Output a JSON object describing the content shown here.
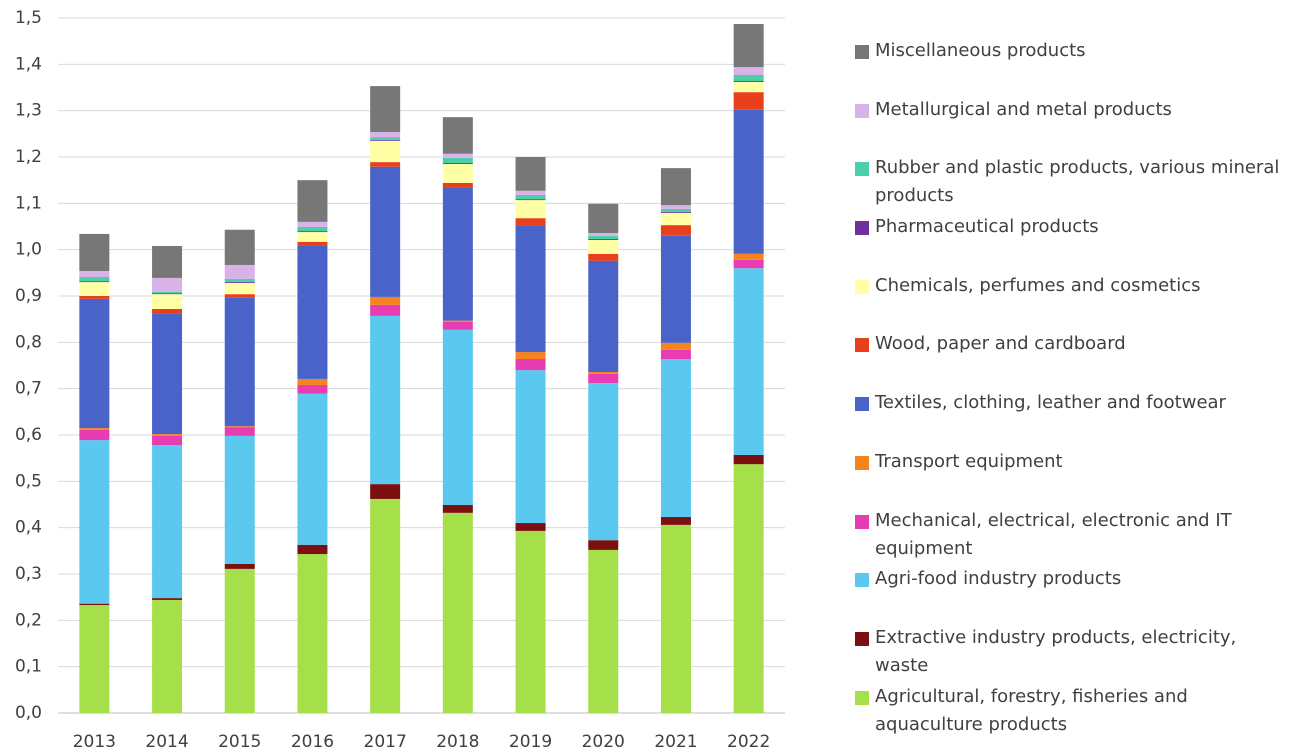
{
  "chart_data": {
    "type": "stacked_bar",
    "categories": [
      "2013",
      "2014",
      "2015",
      "2016",
      "2017",
      "2018",
      "2019",
      "2020",
      "2021",
      "2022"
    ],
    "ylim": [
      0,
      1.5
    ],
    "yticks": [
      {
        "value": 0,
        "label": "0,0"
      },
      {
        "value": 0.1,
        "label": "0,1"
      },
      {
        "value": 0.2,
        "label": "0,2"
      },
      {
        "value": 0.3,
        "label": "0,3"
      },
      {
        "value": 0.4,
        "label": "0,4"
      },
      {
        "value": 0.5,
        "label": "0,5"
      },
      {
        "value": 0.6,
        "label": "0,6"
      },
      {
        "value": 0.7,
        "label": "0,7"
      },
      {
        "value": 0.8,
        "label": "0,8"
      },
      {
        "value": 0.9,
        "label": "0,9"
      },
      {
        "value": 1.0,
        "label": "1,0"
      },
      {
        "value": 1.1,
        "label": "1,1"
      },
      {
        "value": 1.2,
        "label": "1,2"
      },
      {
        "value": 1.3,
        "label": "1,3"
      },
      {
        "value": 1.4,
        "label": "1,4"
      },
      {
        "value": 1.5,
        "label": "1,5"
      }
    ],
    "grid": true,
    "series": [
      {
        "name": "Agricultural, forestry, fisheries and aquaculture products",
        "color": "#a5e04b",
        "values": [
          0.233,
          0.244,
          0.311,
          0.343,
          0.462,
          0.432,
          0.393,
          0.352,
          0.406,
          0.537
        ]
      },
      {
        "name": "Extractive industry products, electricity, waste",
        "color": "#7b1010",
        "values": [
          0.003,
          0.004,
          0.011,
          0.02,
          0.032,
          0.017,
          0.017,
          0.021,
          0.017,
          0.02
        ]
      },
      {
        "name": "Agri-food industry products",
        "color": "#5bc8f0",
        "values": [
          0.353,
          0.33,
          0.276,
          0.326,
          0.363,
          0.378,
          0.33,
          0.339,
          0.341,
          0.403
        ]
      },
      {
        "name": "Mechanical, electrical, electronic and IT equipment",
        "color": "#e83cb3",
        "values": [
          0.022,
          0.02,
          0.019,
          0.019,
          0.024,
          0.017,
          0.024,
          0.02,
          0.02,
          0.018
        ]
      },
      {
        "name": "Transport equipment",
        "color": "#f5841f",
        "values": [
          0.004,
          0.004,
          0.002,
          0.013,
          0.017,
          0.003,
          0.015,
          0.004,
          0.015,
          0.013
        ]
      },
      {
        "name": "Textiles, clothing, leather and footwear",
        "color": "#4a63c8",
        "values": [
          0.279,
          0.261,
          0.277,
          0.287,
          0.281,
          0.288,
          0.274,
          0.24,
          0.231,
          0.311
        ]
      },
      {
        "name": "Wood, paper and cardboard",
        "color": "#e8401c",
        "values": [
          0.006,
          0.009,
          0.008,
          0.009,
          0.01,
          0.009,
          0.015,
          0.015,
          0.023,
          0.038
        ]
      },
      {
        "name": "Chemicals, perfumes and cosmetics",
        "color": "#ffffa6",
        "values": [
          0.03,
          0.032,
          0.024,
          0.021,
          0.046,
          0.041,
          0.039,
          0.03,
          0.026,
          0.022
        ]
      },
      {
        "name": "Pharmaceutical products",
        "color": "#7030a0",
        "values": [
          0.002,
          0.002,
          0.002,
          0.002,
          0.002,
          0.002,
          0.002,
          0.002,
          0.002,
          0.002
        ]
      },
      {
        "name": "Rubber and plastic products, various mineral products",
        "color": "#4ccfa8",
        "values": [
          0.009,
          0.003,
          0.007,
          0.009,
          0.006,
          0.011,
          0.009,
          0.007,
          0.007,
          0.013
        ]
      },
      {
        "name": "Metallurgical and metal products",
        "color": "#d9b3e8",
        "values": [
          0.013,
          0.03,
          0.03,
          0.011,
          0.011,
          0.009,
          0.009,
          0.006,
          0.008,
          0.017
        ]
      },
      {
        "name": "Miscellaneous products",
        "color": "#777777",
        "values": [
          0.08,
          0.069,
          0.076,
          0.09,
          0.099,
          0.079,
          0.073,
          0.063,
          0.08,
          0.093
        ]
      }
    ]
  }
}
